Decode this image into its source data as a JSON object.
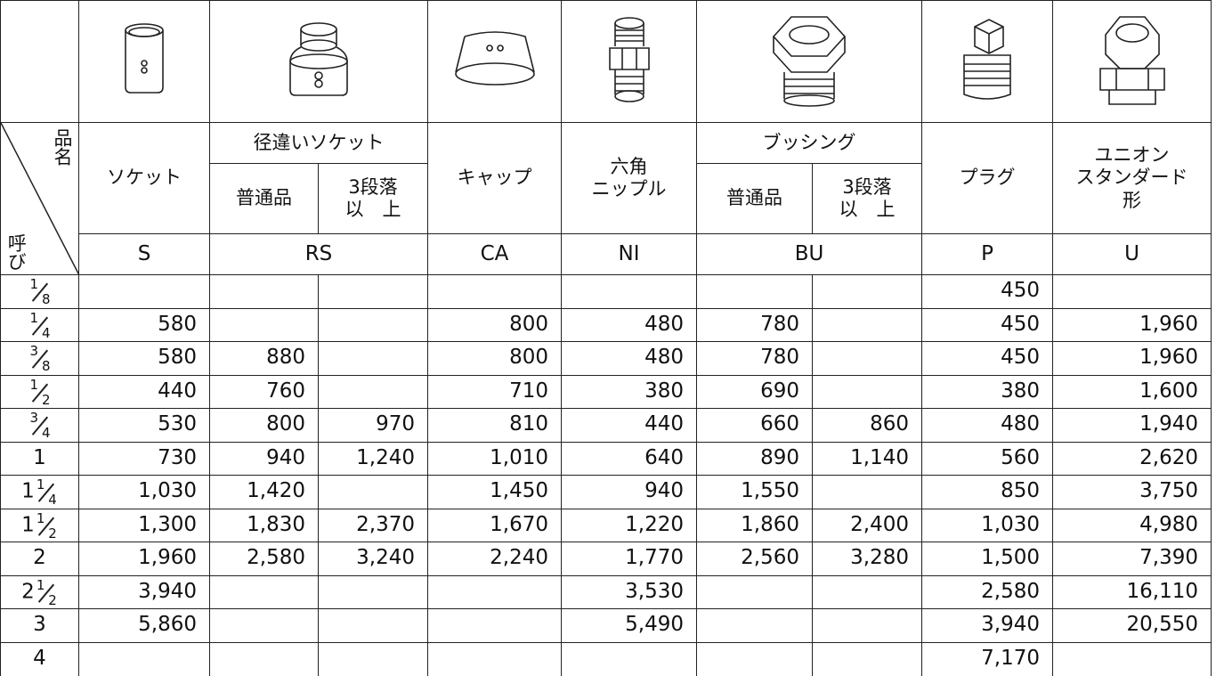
{
  "header": {
    "item": "品名",
    "size": "呼び"
  },
  "columns": [
    {
      "name": [
        "ソケット"
      ],
      "code": "S"
    },
    {
      "name": [
        "径違いソケット"
      ],
      "code": "RS",
      "sub": [
        [
          "普通品"
        ],
        [
          "3段落",
          "以　上"
        ]
      ]
    },
    {
      "name": [
        "キャップ"
      ],
      "code": "CA"
    },
    {
      "name": [
        "六角",
        "ニップル"
      ],
      "code": "NI"
    },
    {
      "name": [
        "ブッシング"
      ],
      "code": "BU",
      "sub": [
        [
          "普通品"
        ],
        [
          "3段落",
          "以　上"
        ]
      ]
    },
    {
      "name": [
        "プラグ"
      ],
      "code": "P"
    },
    {
      "name": [
        "ユニオン",
        "スタンダード",
        "形"
      ],
      "code": "U"
    }
  ],
  "rows": [
    {
      "size": {
        "num": "1",
        "den": "8"
      },
      "values": [
        null,
        null,
        null,
        null,
        null,
        null,
        null,
        "450",
        null
      ]
    },
    {
      "size": {
        "num": "1",
        "den": "4"
      },
      "values": [
        "580",
        null,
        null,
        "800",
        "480",
        "780",
        null,
        "450",
        "1,960"
      ]
    },
    {
      "size": {
        "num": "3",
        "den": "8"
      },
      "values": [
        "580",
        "880",
        null,
        "800",
        "480",
        "780",
        null,
        "450",
        "1,960"
      ]
    },
    {
      "size": {
        "num": "1",
        "den": "2"
      },
      "values": [
        "440",
        "760",
        null,
        "710",
        "380",
        "690",
        null,
        "380",
        "1,600"
      ]
    },
    {
      "size": {
        "num": "3",
        "den": "4"
      },
      "values": [
        "530",
        "800",
        "970",
        "810",
        "440",
        "660",
        "860",
        "480",
        "1,940"
      ]
    },
    {
      "size": {
        "whole": "1"
      },
      "values": [
        "730",
        "940",
        "1,240",
        "1,010",
        "640",
        "890",
        "1,140",
        "560",
        "2,620"
      ]
    },
    {
      "size": {
        "whole": "1",
        "num": "1",
        "den": "4"
      },
      "values": [
        "1,030",
        "1,420",
        null,
        "1,450",
        "940",
        "1,550",
        null,
        "850",
        "3,750"
      ]
    },
    {
      "size": {
        "whole": "1",
        "num": "1",
        "den": "2"
      },
      "values": [
        "1,300",
        "1,830",
        "2,370",
        "1,670",
        "1,220",
        "1,860",
        "2,400",
        "1,030",
        "4,980"
      ]
    },
    {
      "size": {
        "whole": "2"
      },
      "values": [
        "1,960",
        "2,580",
        "3,240",
        "2,240",
        "1,770",
        "2,560",
        "3,280",
        "1,500",
        "7,390"
      ]
    },
    {
      "size": {
        "whole": "2",
        "num": "1",
        "den": "2"
      },
      "values": [
        "3,940",
        null,
        null,
        null,
        "3,530",
        null,
        null,
        "2,580",
        "16,110"
      ]
    },
    {
      "size": {
        "whole": "3"
      },
      "values": [
        "5,860",
        null,
        null,
        null,
        "5,490",
        null,
        null,
        "3,940",
        "20,550"
      ]
    },
    {
      "size": {
        "whole": "4"
      },
      "values": [
        null,
        null,
        null,
        null,
        null,
        null,
        null,
        "7,170",
        null
      ]
    }
  ]
}
